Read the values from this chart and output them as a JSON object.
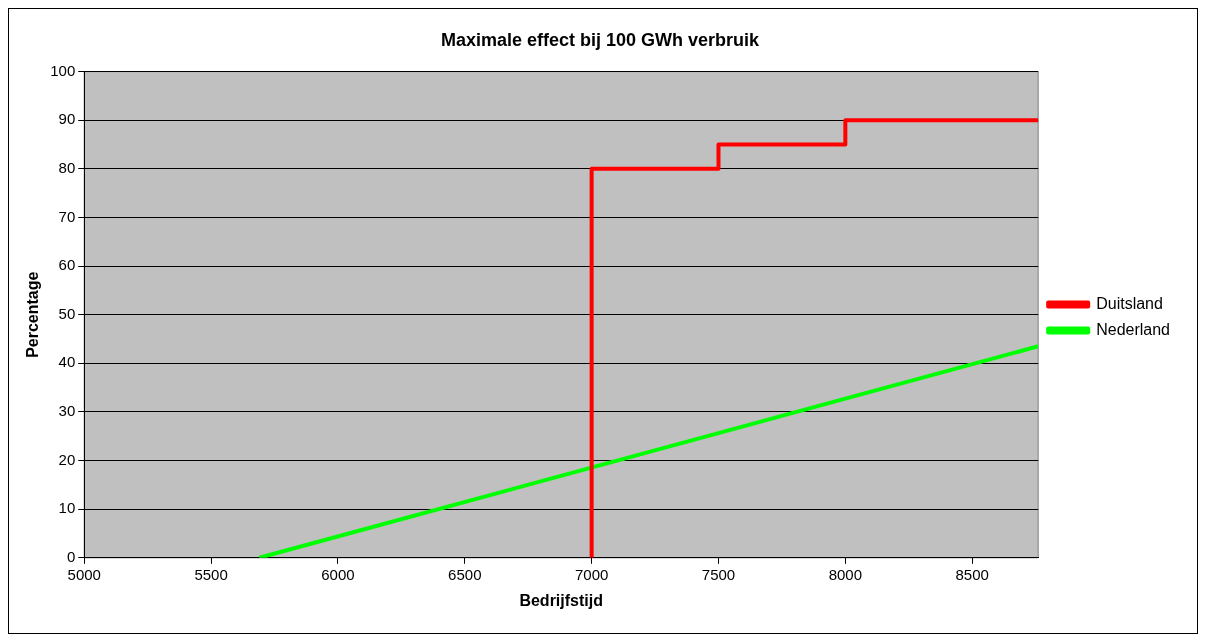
{
  "chart_data": {
    "type": "line",
    "title": "Maximale effect bij 100 GWh verbruik",
    "xlabel": "Bedrijfstijd",
    "ylabel": "Percentage",
    "series": [
      {
        "name": "Duitsland",
        "type": "step",
        "color": "#ff0000",
        "x": [
          7000,
          7000,
          7500,
          8000,
          8760
        ],
        "values": [
          0,
          80,
          85,
          90,
          90
        ]
      },
      {
        "name": "Nederland",
        "type": "line",
        "color": "#00ff00",
        "x": [
          5690,
          8760
        ],
        "values": [
          0,
          43.5
        ]
      }
    ],
    "xlim": [
      5000,
      8760
    ],
    "xticks": [
      5000,
      5500,
      6000,
      6500,
      7000,
      7500,
      8000,
      8500
    ],
    "ylim": [
      0,
      100
    ],
    "yticks": [
      0,
      10,
      20,
      30,
      40,
      50,
      60,
      70,
      80,
      90,
      100
    ],
    "grid": "y",
    "legend": "right",
    "marker": "none"
  }
}
